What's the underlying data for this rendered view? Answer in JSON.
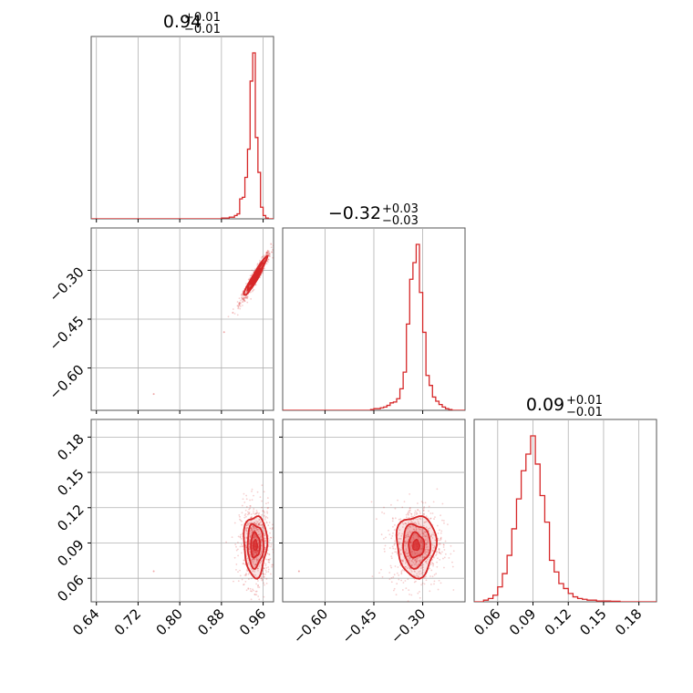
{
  "chart_data": {
    "type": "corner",
    "color": "#d62728",
    "grid": true,
    "parameters": [
      {
        "title_value": "0.94",
        "err_plus": "+0.01",
        "err_minus": "−0.01",
        "range": [
          0.63,
          0.98
        ],
        "ticks": [
          0.64,
          0.72,
          0.8,
          0.88,
          0.96
        ],
        "tick_labels": [
          "0.64",
          "0.72",
          "0.80",
          "0.88",
          "0.96"
        ]
      },
      {
        "title_value": "−0.32",
        "err_plus": "+0.03",
        "err_minus": "−0.03",
        "range": [
          -0.73,
          -0.17
        ],
        "ticks": [
          -0.6,
          -0.45,
          -0.3
        ],
        "tick_labels": [
          "−0.60",
          "−0.45",
          "−0.30"
        ]
      },
      {
        "title_value": "0.09",
        "err_plus": "+0.01",
        "err_minus": "−0.01",
        "range": [
          0.04,
          0.195
        ],
        "ticks": [
          0.06,
          0.09,
          0.12,
          0.15,
          0.18
        ],
        "tick_labels": [
          "0.06",
          "0.09",
          "0.12",
          "0.15",
          "0.18"
        ]
      }
    ],
    "histograms": [
      {
        "param": 0,
        "bin_width": 0.005,
        "bin_centers": [
          0.8825,
          0.8875,
          0.8925,
          0.8975,
          0.9025,
          0.9075,
          0.9125,
          0.9175,
          0.9225,
          0.9275,
          0.9325,
          0.9375,
          0.9425,
          0.9475,
          0.9525,
          0.9575,
          0.9625,
          0.9675
        ],
        "heights": [
          0.005,
          0.005,
          0.005,
          0.01,
          0.01,
          0.02,
          0.03,
          0.12,
          0.13,
          0.25,
          0.42,
          0.83,
          1.0,
          0.49,
          0.28,
          0.07,
          0.02,
          0.005
        ]
      },
      {
        "param": 1,
        "bin_width": 0.01,
        "bin_centers": [
          -0.455,
          -0.445,
          -0.435,
          -0.425,
          -0.415,
          -0.405,
          -0.395,
          -0.385,
          -0.375,
          -0.365,
          -0.355,
          -0.345,
          -0.335,
          -0.325,
          -0.315,
          -0.305,
          -0.295,
          -0.285,
          -0.275,
          -0.265,
          -0.255,
          -0.245,
          -0.235,
          -0.225,
          -0.215
        ],
        "heights": [
          0.005,
          0.01,
          0.01,
          0.015,
          0.02,
          0.03,
          0.045,
          0.05,
          0.07,
          0.13,
          0.23,
          0.52,
          0.79,
          0.89,
          1.0,
          0.71,
          0.47,
          0.21,
          0.15,
          0.08,
          0.055,
          0.035,
          0.02,
          0.01,
          0.005
        ]
      },
      {
        "param": 2,
        "bin_width": 0.004,
        "bin_centers": [
          0.05,
          0.054,
          0.058,
          0.062,
          0.066,
          0.07,
          0.074,
          0.078,
          0.082,
          0.086,
          0.09,
          0.094,
          0.098,
          0.102,
          0.106,
          0.11,
          0.114,
          0.118,
          0.122,
          0.126,
          0.13,
          0.134,
          0.138,
          0.142,
          0.146,
          0.15,
          0.154,
          0.158,
          0.162
        ],
        "heights": [
          0.01,
          0.02,
          0.04,
          0.09,
          0.17,
          0.28,
          0.44,
          0.62,
          0.79,
          0.89,
          1.0,
          0.83,
          0.64,
          0.48,
          0.25,
          0.18,
          0.11,
          0.08,
          0.05,
          0.03,
          0.02,
          0.015,
          0.01,
          0.01,
          0.005,
          0.005,
          0.005,
          0.003,
          0.003
        ]
      }
    ],
    "scatter_panels": [
      {
        "x_param": 0,
        "y_param": 1,
        "correlated": true,
        "x_center": 0.945,
        "y_center": -0.32,
        "x_sigma": 0.011,
        "y_sigma": 0.03,
        "correlation": 0.96,
        "outliers": [
          [
            0.75,
            -0.68
          ],
          [
            0.885,
            -0.49
          ]
        ]
      },
      {
        "x_param": 0,
        "y_param": 2,
        "correlated": false,
        "x_center": 0.945,
        "y_center": 0.088,
        "x_sigma": 0.011,
        "y_sigma": 0.013,
        "correlation": 0.0,
        "outliers": [
          [
            0.75,
            0.066
          ]
        ]
      },
      {
        "x_param": 1,
        "y_param": 2,
        "correlated": false,
        "x_center": -0.32,
        "y_center": 0.088,
        "x_sigma": 0.03,
        "y_sigma": 0.013,
        "correlation": 0.0,
        "outliers": [
          [
            -0.68,
            0.066
          ]
        ]
      }
    ]
  }
}
